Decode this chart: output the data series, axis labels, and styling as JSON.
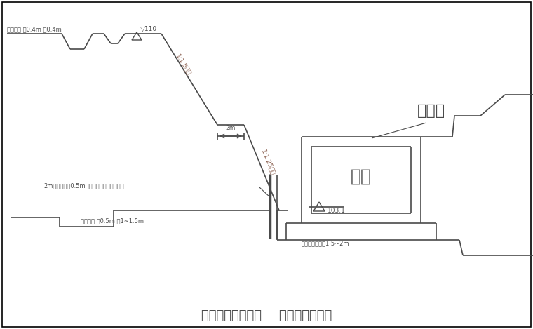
{
  "title": "需要时增加松木桩    边坡加固示意图",
  "label_paishui_top": "排水明沟 深0.4m 宽0.4m",
  "label_110": "110",
  "label_slope1": "1:1.5坡坡",
  "label_slope2": "1:1.25坡坡",
  "label_2m": "2m",
  "label_mupile": "2m长木桩间距0.5m插入边坡上用竹篾篮固桩",
  "label_paishui_bottom": "排水明沟 深0.5m 宽1~1.5m",
  "label_jikeng": "基坑",
  "label_103": "103.1",
  "label_yinshuiqu": "引水渠",
  "label_bange": "帮手篱插设宽度1.5~2m",
  "bg_color": "#ffffff",
  "line_color": "#4a4a4a",
  "text_color": "#4a4a4a",
  "slope_text_color": "#8B6050"
}
